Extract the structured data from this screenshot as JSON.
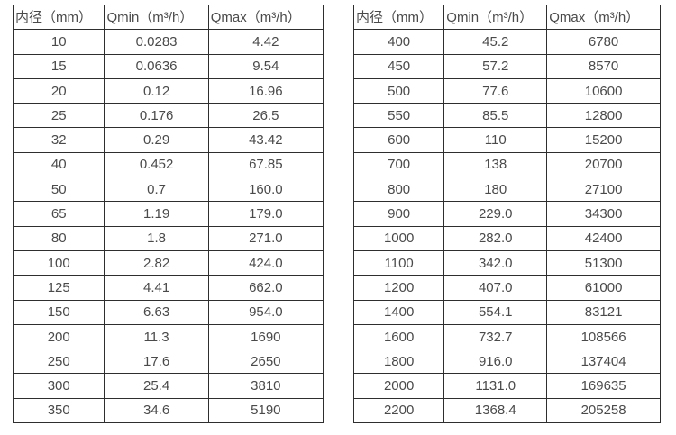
{
  "colors": {
    "background": "#ffffff",
    "border": "#2e2e2e",
    "text": "#4a4a4a"
  },
  "tables": [
    {
      "headers": [
        "内径（mm）",
        "Qmin（m³/h）",
        "Qmax（m³/h）"
      ],
      "rows": [
        [
          "10",
          "0.0283",
          "4.42"
        ],
        [
          "15",
          "0.0636",
          "9.54"
        ],
        [
          "20",
          "0.12",
          "16.96"
        ],
        [
          "25",
          "0.176",
          "26.5"
        ],
        [
          "32",
          "0.29",
          "43.42"
        ],
        [
          "40",
          "0.452",
          "67.85"
        ],
        [
          "50",
          "0.7",
          "160.0"
        ],
        [
          "65",
          "1.19",
          "179.0"
        ],
        [
          "80",
          "1.8",
          "271.0"
        ],
        [
          "100",
          "2.82",
          "424.0"
        ],
        [
          "125",
          "4.41",
          "662.0"
        ],
        [
          "150",
          "6.63",
          "954.0"
        ],
        [
          "200",
          "11.3",
          "1690"
        ],
        [
          "250",
          "17.6",
          "2650"
        ],
        [
          "300",
          "25.4",
          "3810"
        ],
        [
          "350",
          "34.6",
          "5190"
        ]
      ]
    },
    {
      "headers": [
        "内径（mm）",
        "Qmin（m³/h）",
        "Qmax（m³/h）"
      ],
      "rows": [
        [
          "400",
          "45.2",
          "6780"
        ],
        [
          "450",
          "57.2",
          "8570"
        ],
        [
          "500",
          "77.6",
          "10600"
        ],
        [
          "550",
          "85.5",
          "12800"
        ],
        [
          "600",
          "110",
          "15200"
        ],
        [
          "700",
          "138",
          "20700"
        ],
        [
          "800",
          "180",
          "27100"
        ],
        [
          "900",
          "229.0",
          "34300"
        ],
        [
          "1000",
          "282.0",
          "42400"
        ],
        [
          "1100",
          "342.0",
          "51300"
        ],
        [
          "1200",
          "407.0",
          "61000"
        ],
        [
          "1400",
          "554.1",
          "83121"
        ],
        [
          "1600",
          "732.7",
          "108566"
        ],
        [
          "1800",
          "916.0",
          "137404"
        ],
        [
          "2000",
          "1131.0",
          "169635"
        ],
        [
          "2200",
          "1368.4",
          "205258"
        ]
      ]
    }
  ]
}
